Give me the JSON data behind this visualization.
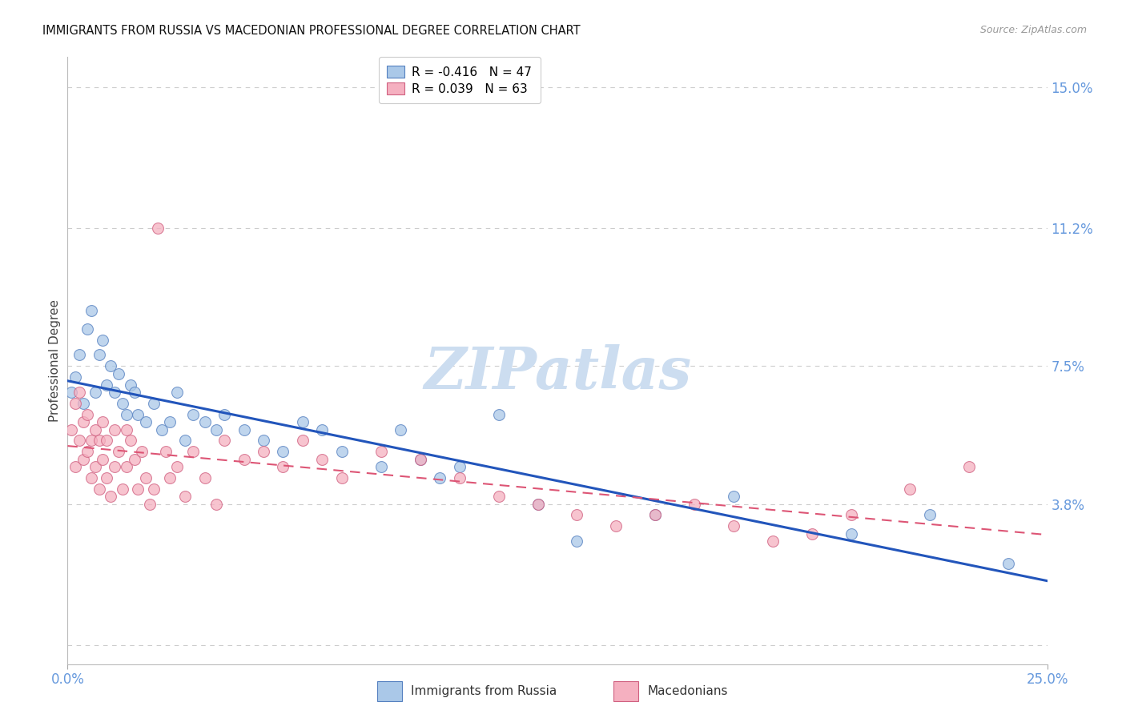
{
  "title": "IMMIGRANTS FROM RUSSIA VS MACEDONIAN PROFESSIONAL DEGREE CORRELATION CHART",
  "source": "Source: ZipAtlas.com",
  "ylabel": "Professional Degree",
  "yticks": [
    0.0,
    0.038,
    0.075,
    0.112,
    0.15
  ],
  "ytick_labels": [
    "",
    "3.8%",
    "7.5%",
    "11.2%",
    "15.0%"
  ],
  "xlim": [
    0.0,
    0.25
  ],
  "ylim": [
    -0.005,
    0.158
  ],
  "watermark": "ZIPatlas",
  "legend_entries": [
    {
      "label": "Immigrants from Russia",
      "color": "#aac8e8",
      "edge": "#5580c0",
      "R": "-0.416",
      "N": "47"
    },
    {
      "label": "Macedonians",
      "color": "#f5b0c0",
      "edge": "#d06080",
      "R": "0.039",
      "N": "63"
    }
  ],
  "russia_x": [
    0.001,
    0.002,
    0.003,
    0.004,
    0.005,
    0.006,
    0.007,
    0.008,
    0.009,
    0.01,
    0.011,
    0.012,
    0.013,
    0.014,
    0.015,
    0.016,
    0.017,
    0.018,
    0.02,
    0.022,
    0.024,
    0.026,
    0.028,
    0.03,
    0.032,
    0.035,
    0.038,
    0.04,
    0.045,
    0.05,
    0.055,
    0.06,
    0.065,
    0.07,
    0.08,
    0.085,
    0.09,
    0.095,
    0.1,
    0.11,
    0.12,
    0.13,
    0.15,
    0.17,
    0.2,
    0.22,
    0.24
  ],
  "russia_y": [
    0.068,
    0.072,
    0.078,
    0.065,
    0.085,
    0.09,
    0.068,
    0.078,
    0.082,
    0.07,
    0.075,
    0.068,
    0.073,
    0.065,
    0.062,
    0.07,
    0.068,
    0.062,
    0.06,
    0.065,
    0.058,
    0.06,
    0.068,
    0.055,
    0.062,
    0.06,
    0.058,
    0.062,
    0.058,
    0.055,
    0.052,
    0.06,
    0.058,
    0.052,
    0.048,
    0.058,
    0.05,
    0.045,
    0.048,
    0.062,
    0.038,
    0.028,
    0.035,
    0.04,
    0.03,
    0.035,
    0.022
  ],
  "macedonia_x": [
    0.001,
    0.002,
    0.002,
    0.003,
    0.003,
    0.004,
    0.004,
    0.005,
    0.005,
    0.006,
    0.006,
    0.007,
    0.007,
    0.008,
    0.008,
    0.009,
    0.009,
    0.01,
    0.01,
    0.011,
    0.012,
    0.012,
    0.013,
    0.014,
    0.015,
    0.015,
    0.016,
    0.017,
    0.018,
    0.019,
    0.02,
    0.021,
    0.022,
    0.023,
    0.025,
    0.026,
    0.028,
    0.03,
    0.032,
    0.035,
    0.038,
    0.04,
    0.045,
    0.05,
    0.055,
    0.06,
    0.065,
    0.07,
    0.08,
    0.09,
    0.1,
    0.11,
    0.12,
    0.13,
    0.14,
    0.15,
    0.16,
    0.17,
    0.18,
    0.19,
    0.2,
    0.215,
    0.23
  ],
  "macedonia_y": [
    0.058,
    0.048,
    0.065,
    0.055,
    0.068,
    0.05,
    0.06,
    0.052,
    0.062,
    0.045,
    0.055,
    0.048,
    0.058,
    0.042,
    0.055,
    0.05,
    0.06,
    0.045,
    0.055,
    0.04,
    0.048,
    0.058,
    0.052,
    0.042,
    0.048,
    0.058,
    0.055,
    0.05,
    0.042,
    0.052,
    0.045,
    0.038,
    0.042,
    0.112,
    0.052,
    0.045,
    0.048,
    0.04,
    0.052,
    0.045,
    0.038,
    0.055,
    0.05,
    0.052,
    0.048,
    0.055,
    0.05,
    0.045,
    0.052,
    0.05,
    0.045,
    0.04,
    0.038,
    0.035,
    0.032,
    0.035,
    0.038,
    0.032,
    0.028,
    0.03,
    0.035,
    0.042,
    0.048
  ],
  "russia_line_color": "#2255bb",
  "macedonia_line_color": "#dd5575",
  "grid_color": "#cccccc",
  "background_color": "#ffffff",
  "title_fontsize": 10.5,
  "source_fontsize": 9,
  "ylabel_fontsize": 11,
  "axis_label_color": "#6699dd",
  "watermark_color": "#ccddf0",
  "watermark_fontsize": 52
}
